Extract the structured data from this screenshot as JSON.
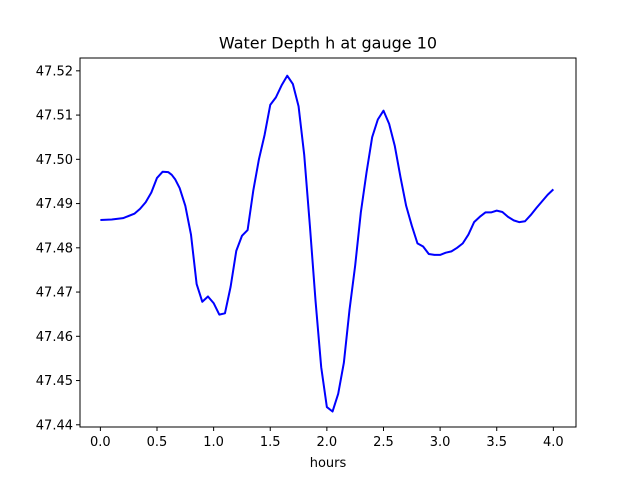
{
  "chart_data": {
    "type": "line",
    "title": "Water Depth h at gauge 10",
    "xlabel": "hours",
    "ylabel": "",
    "xlim": [
      -0.18,
      4.2
    ],
    "ylim": [
      47.4395,
      47.5229
    ],
    "xticks": [
      0.0,
      0.5,
      1.0,
      1.5,
      2.0,
      2.5,
      3.0,
      3.5,
      4.0
    ],
    "xtick_labels": [
      "0.0",
      "0.5",
      "1.0",
      "1.5",
      "2.0",
      "2.5",
      "3.0",
      "3.5",
      "4.0"
    ],
    "yticks": [
      47.44,
      47.45,
      47.46,
      47.47,
      47.48,
      47.49,
      47.5,
      47.51,
      47.52
    ],
    "ytick_labels": [
      "47.44",
      "47.45",
      "47.46",
      "47.47",
      "47.48",
      "47.49",
      "47.50",
      "47.51",
      "47.52"
    ],
    "grid": false,
    "series": [
      {
        "color": "#0000ff",
        "x": [
          0.0,
          0.1,
          0.2,
          0.3,
          0.35,
          0.4,
          0.45,
          0.5,
          0.55,
          0.6,
          0.63,
          0.66,
          0.7,
          0.75,
          0.8,
          0.85,
          0.9,
          0.95,
          1.0,
          1.05,
          1.1,
          1.15,
          1.2,
          1.25,
          1.3,
          1.35,
          1.4,
          1.45,
          1.5,
          1.55,
          1.6,
          1.65,
          1.7,
          1.75,
          1.8,
          1.85,
          1.9,
          1.95,
          2.0,
          2.05,
          2.1,
          2.15,
          2.2,
          2.25,
          2.3,
          2.35,
          2.4,
          2.45,
          2.5,
          2.55,
          2.6,
          2.65,
          2.7,
          2.75,
          2.8,
          2.85,
          2.9,
          2.95,
          3.0,
          3.05,
          3.1,
          3.15,
          3.2,
          3.25,
          3.3,
          3.35,
          3.4,
          3.45,
          3.5,
          3.55,
          3.6,
          3.65,
          3.7,
          3.75,
          3.8,
          3.85,
          3.9,
          3.95,
          4.0
        ],
        "y": [
          47.4863,
          47.4864,
          47.4867,
          47.4877,
          47.4888,
          47.4903,
          47.4925,
          47.4958,
          47.4972,
          47.4971,
          47.4965,
          47.4955,
          47.4935,
          47.4895,
          47.483,
          47.4718,
          47.4678,
          47.469,
          47.4675,
          47.4649,
          47.4652,
          47.4712,
          47.4793,
          47.4827,
          47.484,
          47.4929,
          47.5,
          47.5055,
          47.5123,
          47.514,
          47.5167,
          47.5189,
          47.517,
          47.512,
          47.501,
          47.485,
          47.468,
          47.453,
          47.444,
          47.443,
          47.447,
          47.454,
          47.466,
          47.476,
          47.488,
          47.497,
          47.505,
          47.509,
          47.511,
          47.508,
          47.503,
          47.496,
          47.4895,
          47.485,
          47.481,
          47.4803,
          47.4786,
          47.4784,
          47.4784,
          47.4789,
          47.4792,
          47.48,
          47.481,
          47.483,
          47.4858,
          47.487,
          47.488,
          47.488,
          47.4884,
          47.4881,
          47.487,
          47.4862,
          47.4858,
          47.486,
          47.4874,
          47.489,
          47.4905,
          47.492,
          47.4932
        ]
      }
    ]
  }
}
